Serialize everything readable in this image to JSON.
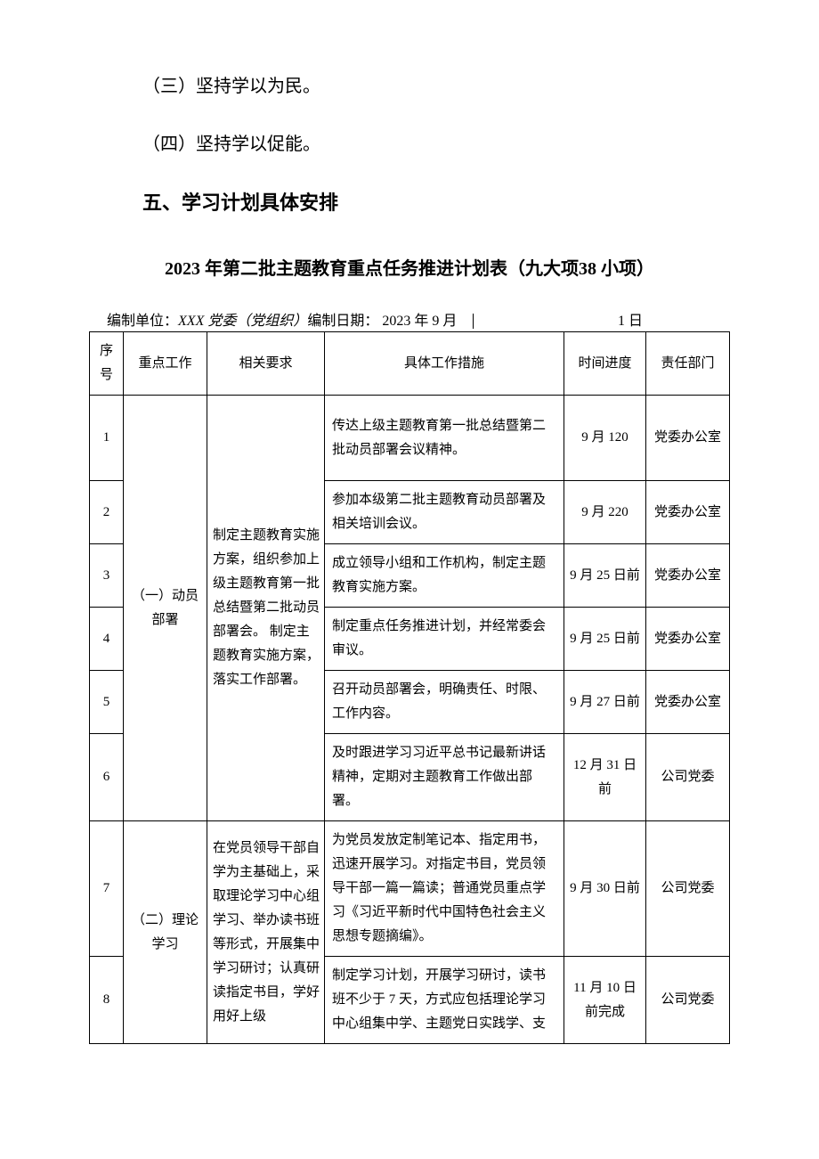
{
  "paragraphs": {
    "p1": "（三）坚持学以为民。",
    "p2": "（四）坚持学以促能。"
  },
  "section_heading": "五、学习计划具体安排",
  "plan_title": "2023 年第二批主题教育重点任务推进计划表（九大项38 小项）",
  "meta": {
    "unit_prefix": "编制单位：",
    "unit_name": "XXX 党委（党组织）",
    "date_label": "编制日期：",
    "date_left": "2023 年 9 月",
    "date_right": "1 日"
  },
  "table": {
    "headers": {
      "seq": "序号",
      "focus": "重点工作",
      "req": "相关要求",
      "measure": "具体工作措施",
      "time": "时间进度",
      "dept": "责任部门"
    },
    "group1": {
      "focus": "（一）动员部署",
      "req": "制定主题教育实施方案，组织参加上级主题教育第一批总结暨第二批动员部署会。\n制定主题教育实施方案，落实工作部署。"
    },
    "group2": {
      "focus": "（二）理论学习",
      "req": "在党员领导干部自学为主基础上，采取理论学习中心组学习、举办读书班等形式，开展集中学习研讨；认真研读指定书目，学好用好上级"
    },
    "rows": [
      {
        "seq": "1",
        "measure": "传达上级主题教育第一批总结暨第二批动员部署会议精神。",
        "time": "9 月 120",
        "dept": "党委办公室"
      },
      {
        "seq": "2",
        "measure": "参加本级第二批主题教育动员部署及相关培训会议。",
        "time": "9 月 220",
        "dept": "党委办公室"
      },
      {
        "seq": "3",
        "measure": "成立领导小组和工作机构，制定主题教育实施方案。",
        "time": "9 月 25 日前",
        "dept": "党委办公室"
      },
      {
        "seq": "4",
        "measure": "制定重点任务推进计划，并经常委会审议。",
        "time": "9 月 25 日前",
        "dept": "党委办公室"
      },
      {
        "seq": "5",
        "measure": "召开动员部署会，明确责任、时限、工作内容。",
        "time": "9 月 27 日前",
        "dept": "党委办公室"
      },
      {
        "seq": "6",
        "measure": "及时跟进学习习近平总书记最新讲话精神，定期对主题教育工作做出部署。",
        "time": "12 月 31 日前",
        "dept": "公司党委"
      },
      {
        "seq": "7",
        "measure": "为党员发放定制笔记本、指定用书，迅速开展学习。对指定书目，党员领导干部一篇一篇读；普通党员重点学习《习近平新时代中国特色社会主义思想专题摘编》。",
        "time": "9 月 30 日前",
        "dept": "公司党委"
      },
      {
        "seq": "8",
        "measure": "制定学习计划，开展学习研讨，读书班不少于 7 天，方式应包括理论学习中心组集中学、主题党日实践学、支",
        "time": "11 月 10 日前完成",
        "dept": "公司党委"
      }
    ]
  }
}
